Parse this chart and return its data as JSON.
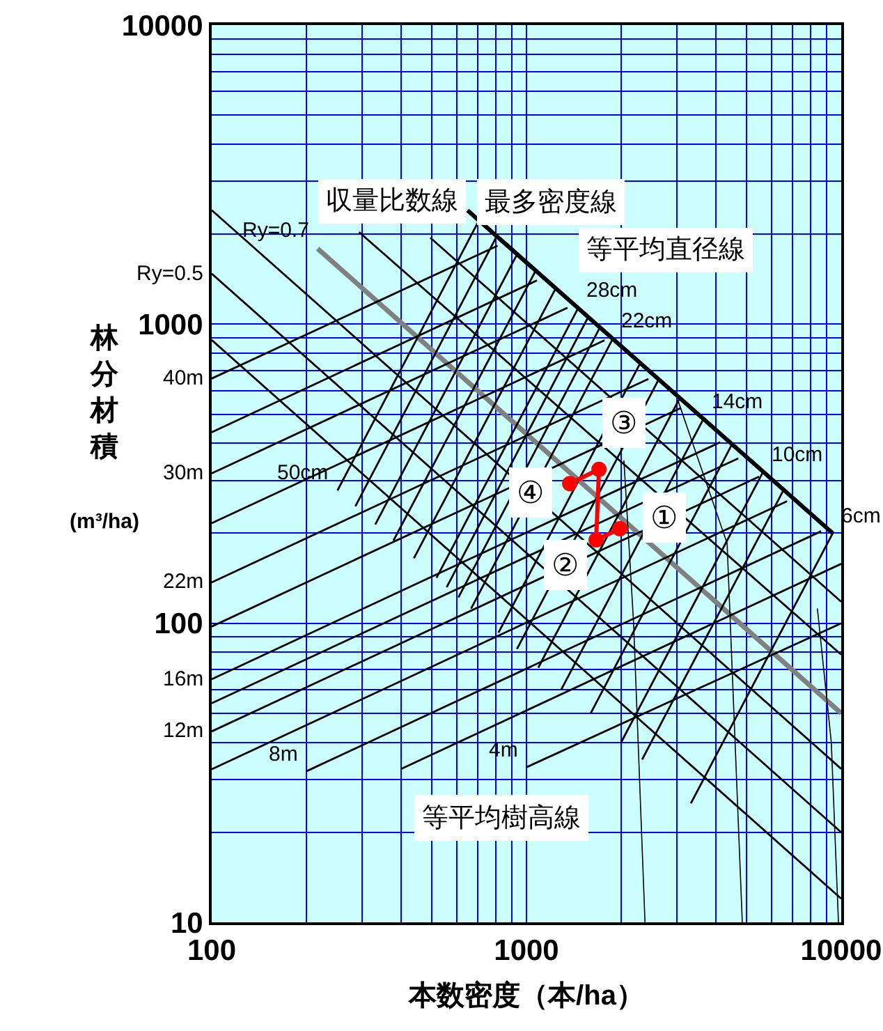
{
  "chart_data": {
    "type": "line",
    "xlabel": "本数密度（本/ha）",
    "ylabel": "林分材積 (m³/ha)",
    "log": "xy",
    "xlim": [
      100,
      10000
    ],
    "ylim": [
      10,
      10000
    ],
    "xticks": [
      100,
      1000,
      10000
    ],
    "yticks": [
      10,
      100,
      1000,
      10000
    ],
    "grid": true,
    "annotations": [
      "収量比数線",
      "最多密度線",
      "等平均直径線",
      "等平均樹高線",
      {
        "text": "①",
        "x": 1980,
        "y": 207
      },
      {
        "text": "②",
        "x": 1665,
        "y": 190
      },
      {
        "text": "③",
        "x": 1700,
        "y": 327
      },
      {
        "text": "④",
        "x": 1372,
        "y": 293
      }
    ],
    "series": [
      {
        "color": "#000000",
        "x": [
          650,
          9400
        ],
        "values": [
          2400,
          200
        ]
      },
      {
        "color": "#000000",
        "x": [
          100,
          10000
        ],
        "values": [
          885,
          12
        ]
      },
      {
        "name": "Ry=0.5",
        "color": "#000000",
        "x": [
          100,
          10000
        ],
        "values": [
          1475,
          20
        ]
      },
      {
        "color": "#000000",
        "x": [
          100,
          10000
        ],
        "values": [
          2405,
          32.6
        ]
      },
      {
        "name": "Ry=0.7",
        "color": "#808080",
        "x": [
          217,
          10000
        ],
        "values": [
          1790,
          50
        ]
      },
      {
        "color": "#000000",
        "x": [
          294,
          10000
        ],
        "values": [
          2030,
          78.5
        ]
      },
      {
        "color": "#000000",
        "x": [
          495,
          10000
        ],
        "values": [
          1945,
          118
        ]
      },
      {
        "name": "4m",
        "color": "#000000",
        "x": [
          1000,
          10000
        ],
        "values": [
          33,
          100
        ]
      },
      {
        "color": "#000000",
        "x": [
          400,
          10000
        ],
        "values": [
          32.6,
          158
        ]
      },
      {
        "name": "8m",
        "color": "#000000",
        "x": [
          200,
          8630
        ],
        "values": [
          32,
          203
        ]
      },
      {
        "color": "#000000",
        "x": [
          100,
          6730
        ],
        "values": [
          32.5,
          256
        ]
      },
      {
        "name": "12m",
        "color": "#000000",
        "x": [
          100,
          5480
        ],
        "values": [
          43.5,
          309
        ]
      },
      {
        "color": "#000000",
        "x": [
          100,
          4710
        ],
        "values": [
          54,
          356
        ]
      },
      {
        "name": "16m",
        "color": "#000000",
        "x": [
          100,
          4130
        ],
        "values": [
          65,
          403
        ]
      },
      {
        "color": "#000000",
        "x": [
          100,
          3100
        ],
        "values": [
          97.5,
          525
        ]
      },
      {
        "name": "22m",
        "color": "#000000",
        "x": [
          100,
          2440
        ],
        "values": [
          137,
          656
        ]
      },
      {
        "color": "#000000",
        "x": [
          100,
          1770
        ],
        "values": [
          216,
          883
        ]
      },
      {
        "name": "30m",
        "color": "#000000",
        "x": [
          100,
          1350
        ],
        "values": [
          317,
          1135
        ]
      },
      {
        "color": "#000000",
        "x": [
          100,
          1080
        ],
        "values": [
          435,
          1400
        ]
      },
      {
        "name": "40m",
        "color": "#000000",
        "x": [
          100,
          810
        ],
        "values": [
          658,
          1830
        ]
      },
      {
        "name": "6cm",
        "color": "#000000",
        "x": [
          9400,
          3330
        ],
        "values": [
          200,
          25
        ]
      },
      {
        "color": "#000000",
        "x": [
          6560,
          2330
        ],
        "values": [
          279,
          35
        ]
      },
      {
        "name": "10cm",
        "color": "#000000",
        "x": [
          5650,
          2000
        ],
        "values": [
          321,
          40
        ]
      },
      {
        "color": "#000000",
        "x": [
          4500,
          1600
        ],
        "values": [
          397,
          50
        ]
      },
      {
        "name": "14cm",
        "color": "#000000",
        "x": [
          3650,
          1290
        ],
        "values": [
          482,
          60
        ]
      },
      {
        "color": "#000000",
        "x": [
          3070,
          1090
        ],
        "values": [
          566,
          71
        ]
      },
      {
        "color": "#000000",
        "x": [
          2630,
          933
        ],
        "values": [
          653,
          82
        ]
      },
      {
        "color": "#000000",
        "x": [
          2300,
          815
        ],
        "values": [
          741,
          93
        ]
      },
      {
        "name": "22cm",
        "color": "#000000",
        "x": [
          1880,
          667
        ],
        "values": [
          893,
          112
        ]
      },
      {
        "color": "#000000",
        "x": [
          1710,
          608
        ],
        "values": [
          973,
          122
        ]
      },
      {
        "color": "#000000",
        "x": [
          1570,
          558
        ],
        "values": [
          1055,
          132
        ]
      },
      {
        "name": "28cm",
        "color": "#000000",
        "x": [
          1460,
          518
        ],
        "values": [
          1132,
          142
        ]
      },
      {
        "color": "#000000",
        "x": [
          1240,
          439
        ],
        "values": [
          1320,
          165
        ]
      },
      {
        "color": "#000000",
        "x": [
          1070,
          378
        ],
        "values": [
          1510,
          189
        ]
      },
      {
        "color": "#000000",
        "x": [
          933,
          331
        ],
        "values": [
          1710,
          214
        ]
      },
      {
        "color": "#000000",
        "x": [
          805,
          286
        ],
        "values": [
          1970,
          246
        ]
      },
      {
        "name": "50cm",
        "color": "#000000",
        "x": [
          251,
          706
        ],
        "values": [
          278,
          2220
        ]
      },
      {
        "color": "#000000",
        "x": [
          2040,
          2190,
          2380
        ],
        "values": [
          350,
          100,
          10
        ]
      },
      {
        "color": "#000000",
        "x": [
          3030,
          4340,
          4850
        ],
        "values": [
          555,
          185,
          10
        ]
      },
      {
        "color": "#000000",
        "x": [
          8400,
          9300,
          9800
        ],
        "values": [
          112,
          40,
          10
        ]
      },
      {
        "color": "#ff0000",
        "marker": "circle",
        "x": [
          1980,
          1665,
          1700,
          1372
        ],
        "values": [
          207,
          190,
          327,
          293
        ]
      }
    ]
  }
}
